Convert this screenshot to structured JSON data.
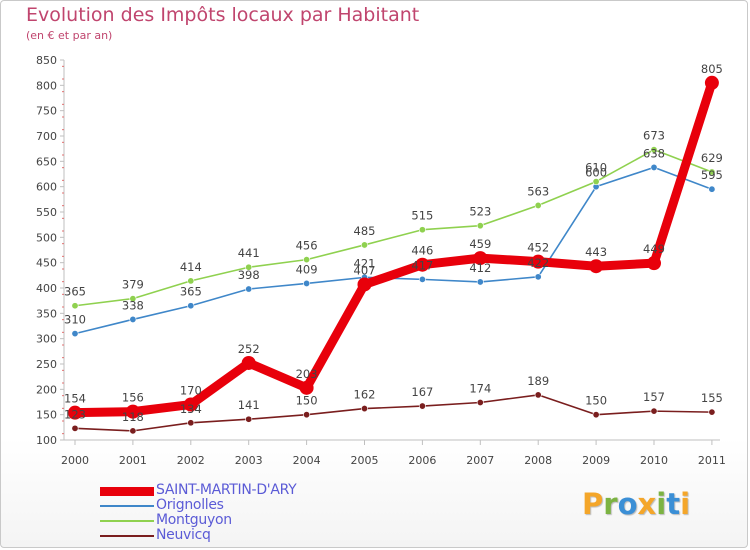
{
  "header": {
    "title": "Evolution des Impôts locaux par Habitant",
    "subtitle": "(en € et par an)"
  },
  "logo": {
    "text": "Proxiti",
    "letters": [
      {
        "ch": "P",
        "color": "#f4a62a"
      },
      {
        "ch": "r",
        "color": "#7cb342"
      },
      {
        "ch": "o",
        "color": "#3b8fd6"
      },
      {
        "ch": "x",
        "color": "#f4a62a"
      },
      {
        "ch": "i",
        "color": "#7cb342"
      },
      {
        "ch": "t",
        "color": "#3b8fd6"
      },
      {
        "ch": "i",
        "color": "#f4a62a"
      }
    ]
  },
  "chart_data": {
    "type": "line",
    "title": "Evolution des Impôts locaux par Habitant",
    "subtitle": "(en € et par an)",
    "xlabel": "",
    "ylabel": "",
    "x": [
      "2000",
      "2001",
      "2002",
      "2003",
      "2004",
      "2005",
      "2006",
      "2007",
      "2008",
      "2009",
      "2010",
      "2011"
    ],
    "ylim": [
      100,
      850
    ],
    "yticks": [
      "100",
      "150",
      "200",
      "250",
      "300",
      "350",
      "400",
      "450",
      "500",
      "550",
      "600",
      "650",
      "700",
      "750",
      "800",
      "850"
    ],
    "grid": false,
    "legend": "bottom-left",
    "series": [
      {
        "name": "SAINT-MARTIN-D'ARY",
        "color": "#e8000b",
        "values": [
          154,
          156,
          170,
          252,
          203,
          407,
          446,
          459,
          452,
          443,
          449,
          805
        ],
        "labels": [
          "154",
          "156",
          "170",
          "252",
          "203",
          "407",
          "446",
          "459",
          "452",
          "443",
          "449",
          "805"
        ]
      },
      {
        "name": "Orignolles",
        "color": "#3f87c9",
        "values": [
          310,
          338,
          365,
          398,
          409,
          421,
          417,
          412,
          422,
          600,
          638,
          595
        ],
        "labels": [
          "310",
          "338",
          "365",
          "398",
          "409",
          "421",
          "417",
          "412",
          "422",
          "600",
          "638",
          "595"
        ]
      },
      {
        "name": "Montguyon",
        "color": "#8fd14f",
        "values": [
          365,
          379,
          414,
          441,
          456,
          485,
          515,
          523,
          563,
          610,
          673,
          629
        ],
        "labels": [
          "365",
          "379",
          "414",
          "441",
          "456",
          "485",
          "515",
          "523",
          "563",
          "610",
          "673",
          "629"
        ]
      },
      {
        "name": "Neuvicq",
        "color": "#7a1e1e",
        "values": [
          123,
          118,
          134,
          141,
          150,
          162,
          167,
          174,
          189,
          150,
          157,
          155
        ],
        "labels": [
          "123",
          "118",
          "134",
          "141",
          "150",
          "162",
          "167",
          "174",
          "189",
          "150",
          "157",
          "155"
        ]
      }
    ]
  }
}
